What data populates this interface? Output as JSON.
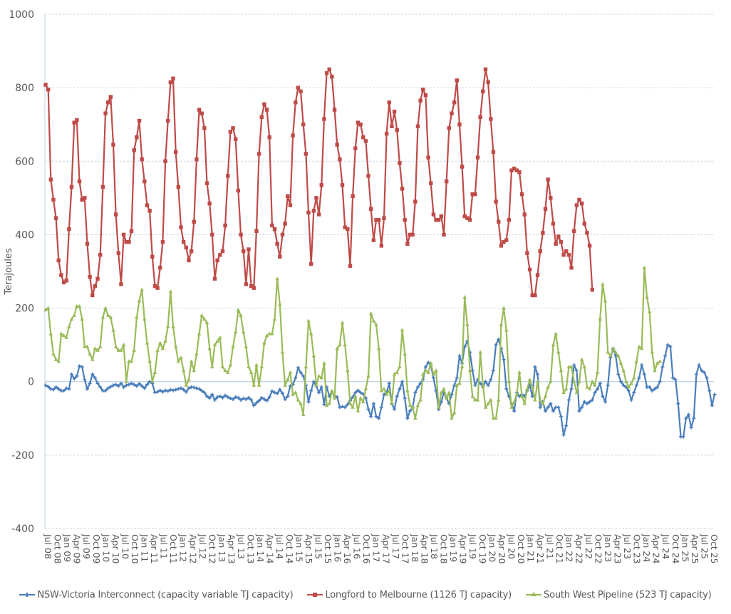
{
  "chart_data": {
    "type": "line",
    "title": "",
    "xlabel": "",
    "ylabel": "Terajoules",
    "ylim": [
      -400,
      1000
    ],
    "yticks": [
      1000,
      800,
      600,
      400,
      200,
      0,
      -200,
      -400
    ],
    "grid": true,
    "legend_position": "bottom",
    "x_tick_labels": [
      "Jul 08",
      "Oct 08",
      "Jan 09",
      "Apr 09",
      "Jul 09",
      "Oct 09",
      "Jan 10",
      "Apr 10",
      "Jul 10",
      "Oct 10",
      "Jan 11",
      "Apr 11",
      "Jul 11",
      "Oct 11",
      "Jan 12",
      "Apr 12",
      "Jul 12",
      "Oct 12",
      "Jan 13",
      "Apr 13",
      "Jul 13",
      "Oct 13",
      "Jan 14",
      "Apr 14",
      "Jul 14",
      "Oct 14",
      "Jan 15",
      "Apr 15",
      "Jul 15",
      "Oct 15",
      "Jan 16",
      "Apr 16",
      "Jul 16",
      "Oct 16",
      "Jan 17",
      "Apr 17",
      "Jul 17",
      "Oct 17",
      "Jan 18",
      "Apr 18",
      "Jul 18",
      "Oct 18",
      "Jan 19",
      "Apr 19",
      "Jul 19",
      "Oct 19",
      "Jan 20",
      "Apr 20",
      "Jul 20",
      "Oct 20",
      "Jan 21",
      "Apr 21",
      "Jul 21",
      "Oct 21",
      "Jan 22",
      "Apr 22",
      "Jul 22",
      "Oct 22",
      "Jan 23",
      "Apr 23",
      "Jul 23",
      "Oct 23",
      "Jan 24",
      "Apr 24",
      "Jul 24",
      "Oct 24",
      "Jan 25",
      "Apr 25",
      "Jul 25",
      "Oct 25"
    ],
    "x_granularity": "monthly (Jul 2008 – Nov 2025)",
    "series": [
      {
        "name": "NSW-Victoria Interconnect (capacity variable TJ capacity)",
        "color": "#4a7ebb",
        "marker": "plus",
        "values": [
          -10,
          -14,
          -20,
          -22,
          -15,
          -20,
          -25,
          -25,
          -18,
          -20,
          20,
          8,
          15,
          42,
          40,
          5,
          -20,
          -5,
          20,
          10,
          -5,
          -15,
          -25,
          -25,
          -18,
          -14,
          -10,
          -8,
          -12,
          -5,
          -15,
          -10,
          -8,
          -5,
          -8,
          -12,
          -6,
          -12,
          -18,
          -8,
          0,
          -5,
          -30,
          -28,
          -24,
          -28,
          -24,
          -26,
          -22,
          -24,
          -22,
          -20,
          -18,
          -22,
          -28,
          -18,
          -15,
          -16,
          -18,
          -20,
          -25,
          -30,
          -40,
          -45,
          -35,
          -50,
          -42,
          -40,
          -44,
          -38,
          -42,
          -46,
          -48,
          -42,
          -44,
          -50,
          -46,
          -48,
          -44,
          -50,
          -65,
          -58,
          -52,
          -44,
          -48,
          -52,
          -42,
          -26,
          -30,
          -32,
          -22,
          -32,
          -48,
          -40,
          -12,
          -8,
          10,
          38,
          25,
          15,
          -10,
          -55,
          -25,
          0,
          -12,
          -30,
          -15,
          -62,
          -15,
          -40,
          -28,
          -40,
          -42,
          -70,
          -68,
          -70,
          -62,
          -52,
          -42,
          -30,
          -24,
          -30,
          -34,
          -45,
          -75,
          -95,
          -60,
          -95,
          -100,
          -70,
          -35,
          -30,
          -5,
          -60,
          -75,
          -40,
          -20,
          0,
          -45,
          -100,
          -80,
          -70,
          -30,
          -15,
          -5,
          5,
          40,
          52,
          45,
          10,
          -25,
          -75,
          -55,
          -30,
          -45,
          -60,
          -35,
          -10,
          10,
          70,
          50,
          95,
          110,
          80,
          30,
          -10,
          5,
          -5,
          -15,
          0,
          -10,
          5,
          30,
          100,
          115,
          90,
          60,
          -20,
          -40,
          -60,
          -80,
          -30,
          -40,
          -35,
          -40,
          -25,
          -10,
          -40,
          40,
          20,
          -70,
          -55,
          -80,
          -70,
          -60,
          -80,
          -70,
          -70,
          -95,
          -145,
          -120,
          -50,
          -20,
          45,
          30,
          -80,
          -70,
          -55,
          -60,
          -55,
          -50,
          -30,
          -20,
          -5,
          -40,
          -55,
          -10,
          65,
          90,
          70,
          20,
          0,
          -10,
          -15,
          -25,
          -50,
          -30,
          -10,
          10,
          45,
          20,
          -15,
          -15,
          -25,
          -20,
          -15,
          0,
          40,
          70,
          100,
          95,
          10,
          5,
          -60,
          -150,
          -150,
          -100,
          -90,
          -125,
          -100,
          20,
          45,
          30,
          25,
          10,
          -25,
          -65,
          -35
        ]
      },
      {
        "name": "Longford to Melbourne (1126 TJ capacity)",
        "color": "#be4b48",
        "marker": "square",
        "values": [
          808,
          795,
          550,
          495,
          445,
          330,
          290,
          270,
          275,
          415,
          530,
          705,
          712,
          545,
          495,
          500,
          375,
          285,
          235,
          260,
          280,
          345,
          530,
          730,
          760,
          775,
          645,
          455,
          350,
          265,
          400,
          380,
          380,
          410,
          630,
          665,
          710,
          605,
          545,
          480,
          465,
          340,
          260,
          255,
          310,
          380,
          600,
          710,
          815,
          825,
          625,
          530,
          420,
          380,
          365,
          330,
          355,
          435,
          605,
          740,
          730,
          690,
          540,
          485,
          400,
          280,
          330,
          345,
          355,
          425,
          560,
          680,
          690,
          660,
          520,
          400,
          355,
          265,
          360,
          260,
          255,
          410,
          620,
          720,
          755,
          740,
          665,
          425,
          415,
          375,
          340,
          400,
          430,
          505,
          480,
          670,
          760,
          800,
          790,
          700,
          620,
          460,
          320,
          465,
          500,
          455,
          535,
          715,
          840,
          850,
          830,
          740,
          645,
          605,
          535,
          420,
          415,
          315,
          505,
          635,
          705,
          700,
          665,
          655,
          560,
          470,
          385,
          440,
          440,
          370,
          445,
          675,
          760,
          695,
          735,
          685,
          595,
          525,
          440,
          375,
          400,
          400,
          490,
          695,
          765,
          795,
          780,
          610,
          540,
          455,
          440,
          440,
          450,
          400,
          545,
          690,
          730,
          760,
          820,
          700,
          585,
          450,
          445,
          440,
          510,
          510,
          610,
          720,
          790,
          850,
          815,
          715,
          625,
          490,
          435,
          370,
          380,
          385,
          440,
          575,
          580,
          575,
          570,
          510,
          455,
          350,
          305,
          235,
          235,
          290,
          355,
          405,
          470,
          550,
          500,
          430,
          375,
          395,
          380,
          345,
          355,
          345,
          310,
          410,
          480,
          495,
          485,
          430,
          405,
          370,
          250
        ]
      },
      {
        "name": "South West Pipeline (523 TJ capacity)",
        "color": "#9bbb59",
        "marker": "triangle",
        "values": [
          195,
          200,
          130,
          75,
          60,
          55,
          130,
          125,
          120,
          150,
          170,
          180,
          205,
          205,
          170,
          95,
          95,
          75,
          60,
          90,
          85,
          95,
          175,
          200,
          180,
          175,
          140,
          95,
          85,
          85,
          100,
          0,
          55,
          55,
          85,
          175,
          220,
          250,
          170,
          105,
          55,
          0,
          25,
          85,
          105,
          90,
          110,
          150,
          245,
          150,
          95,
          55,
          65,
          30,
          -10,
          5,
          55,
          30,
          75,
          130,
          180,
          170,
          160,
          90,
          40,
          100,
          110,
          120,
          40,
          30,
          25,
          45,
          95,
          135,
          195,
          180,
          135,
          95,
          40,
          25,
          -10,
          45,
          -10,
          40,
          105,
          125,
          130,
          130,
          170,
          280,
          210,
          80,
          -10,
          5,
          25,
          -35,
          -30,
          -50,
          -60,
          -90,
          40,
          165,
          130,
          70,
          -10,
          15,
          10,
          50,
          -65,
          -60,
          -25,
          -45,
          90,
          100,
          160,
          100,
          30,
          -60,
          -70,
          -40,
          -80,
          -45,
          -55,
          -20,
          15,
          185,
          165,
          155,
          90,
          -25,
          -20,
          -35,
          -25,
          -60,
          20,
          25,
          40,
          140,
          75,
          -25,
          -65,
          -70,
          -100,
          -65,
          -50,
          20,
          30,
          25,
          50,
          20,
          30,
          -70,
          -30,
          -20,
          -45,
          -30,
          -100,
          -85,
          -10,
          -5,
          40,
          230,
          155,
          30,
          -40,
          -50,
          -50,
          80,
          -10,
          -70,
          -60,
          -50,
          -100,
          -100,
          -50,
          155,
          200,
          140,
          0,
          -70,
          -55,
          -35,
          25,
          -40,
          -60,
          -20,
          5,
          -15,
          -50,
          0,
          -50,
          -60,
          -40,
          -15,
          0,
          100,
          130,
          80,
          30,
          -30,
          -20,
          40,
          40,
          0,
          -30,
          0,
          60,
          40,
          -15,
          -20,
          0,
          -10,
          25,
          170,
          265,
          220,
          80,
          70,
          90,
          80,
          70,
          50,
          30,
          0,
          -15,
          -5,
          10,
          55,
          95,
          90,
          310,
          230,
          190,
          80,
          30,
          50,
          55
        ]
      }
    ]
  },
  "legend": {
    "items": [
      {
        "label": "NSW-Victoria Interconnect (capacity variable TJ capacity)",
        "color": "#4a7ebb"
      },
      {
        "label": "Longford to Melbourne (1126 TJ capacity)",
        "color": "#be4b48"
      },
      {
        "label": "South West Pipeline (523 TJ capacity)",
        "color": "#9bbb59"
      }
    ]
  },
  "axis": {
    "y_labels": [
      "1000",
      "800",
      "600",
      "400",
      "200",
      "0",
      "-200",
      "-400"
    ],
    "y_title": "Terajoules"
  }
}
